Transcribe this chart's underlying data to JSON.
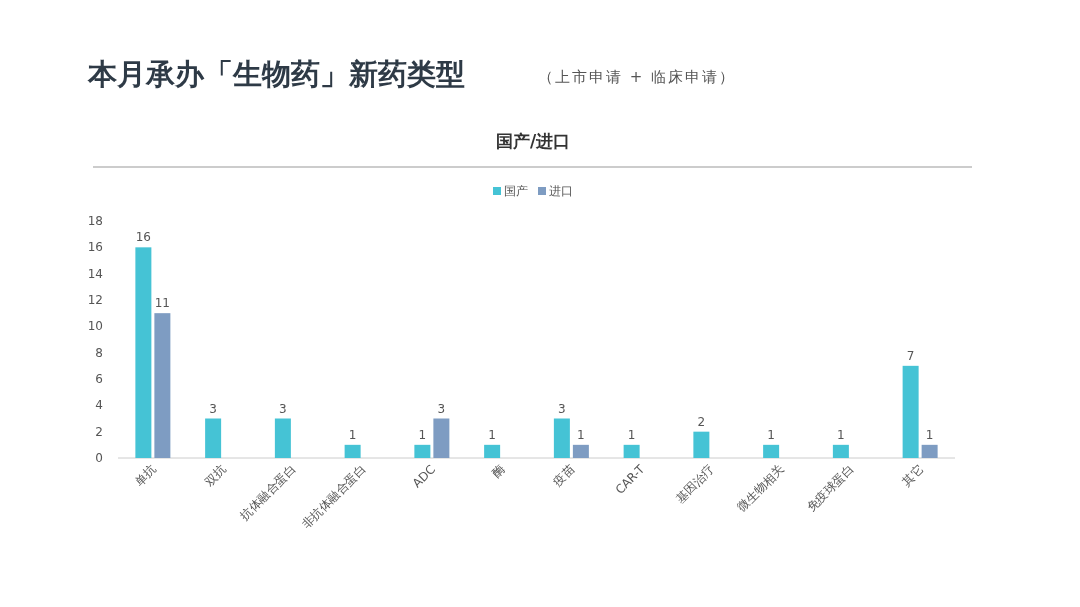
{
  "chart_data": {
    "type": "bar",
    "title": "本月承办「生物药」新药类型",
    "subtitle": "（上市申请 + 临床申请）",
    "annotations": [
      "国产/进口"
    ],
    "categories": [
      "单抗",
      "双抗",
      "抗体融合蛋白",
      "非抗体融合蛋白",
      "ADC",
      "酶",
      "疫苗",
      "CAR-T",
      "基因治疗",
      "微生物相关",
      "免疫球蛋白",
      "其它"
    ],
    "series": [
      {
        "name": "国产",
        "color": "#45c3d5",
        "values": [
          16,
          3,
          3,
          1,
          1,
          1,
          3,
          1,
          2,
          1,
          1,
          7
        ]
      },
      {
        "name": "进口",
        "color": "#7e9cc2",
        "values": [
          11,
          null,
          null,
          null,
          3,
          null,
          1,
          null,
          null,
          null,
          null,
          1
        ]
      }
    ],
    "ylim": [
      0,
      18
    ],
    "yticks": [
      0,
      2,
      4,
      6,
      8,
      10,
      12,
      14,
      16,
      18
    ],
    "data_labels": true,
    "legend": "top"
  }
}
